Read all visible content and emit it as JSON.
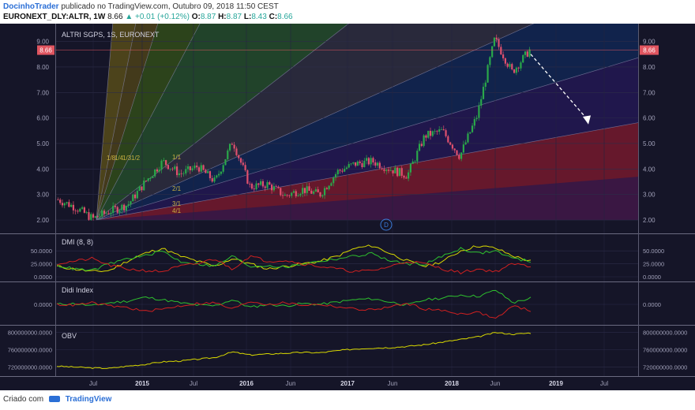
{
  "header": {
    "author": "DocinhoTrader",
    "published": "publicado no TradingView.com, Outubro 09, 2018 11:50 CEST",
    "symbol": "EURONEXT_DLY:ALTR, 1W",
    "last": "8.66",
    "change": "+0.01 (+0.12%)",
    "o_label": "O:",
    "o": "8.87",
    "h_label": "H:",
    "h": "8.87",
    "l_label": "L:",
    "l": "8.43",
    "c_label": "C:",
    "c": "8.66"
  },
  "footer": {
    "created": "Criado com",
    "brand": "TradingView"
  },
  "colors": {
    "background": "#151528",
    "up": "#2aa84a",
    "down": "#e0506e",
    "price_tag": "#e05560",
    "adx": "#d8d800",
    "plus_di": "#2ec02e",
    "minus_di": "#d02020",
    "obv": "#d8d800"
  },
  "chart_data": [
    {
      "type": "line",
      "title": "ALTRI SGPS, 1S, EURONEXT",
      "ylim": [
        1.6,
        9.45
      ],
      "y_ticks": [
        "2.00",
        "3.00",
        "4.00",
        "5.00",
        "6.00",
        "7.00",
        "8.00",
        "9.00"
      ],
      "x_ticks": [
        "Jul",
        "2015",
        "Jul",
        "2016",
        "Jun",
        "2017",
        "Jun",
        "2018",
        "Jun",
        "2019",
        "Jul"
      ],
      "last_price_label": "8.66",
      "gann_labels": [
        "1/8",
        "1/4",
        "1/3",
        "1/2",
        "1/1",
        "2/1",
        "3/1",
        "4/1"
      ],
      "event_marker": "D",
      "series": [
        {
          "x": [
            "2014-05",
            "2014-07",
            "2014-09",
            "2014-10",
            "2014-12",
            "2015-02",
            "2015-04",
            "2015-06",
            "2015-08",
            "2015-10",
            "2015-11",
            "2016-01",
            "2016-03",
            "2016-06",
            "2016-09",
            "2016-11",
            "2017-01",
            "2017-03",
            "2017-05",
            "2017-07",
            "2017-09",
            "2017-11",
            "2018-01",
            "2018-03",
            "2018-05",
            "2018-06",
            "2018-08",
            "2018-10"
          ],
          "values": [
            2.8,
            2.5,
            2.05,
            2.35,
            2.6,
            3.5,
            4.3,
            3.8,
            4.1,
            3.5,
            5.1,
            3.3,
            3.4,
            2.95,
            3.2,
            3.0,
            3.9,
            4.2,
            4.3,
            4.0,
            3.75,
            5.3,
            5.5,
            4.5,
            6.1,
            9.1,
            7.8,
            8.66
          ]
        }
      ]
    },
    {
      "type": "line",
      "title": "DMI (8, 8)",
      "y_ticks": [
        "0.0000",
        "25.0000",
        "50.0000"
      ],
      "ylim": [
        0,
        70
      ],
      "series": [
        {
          "values": [
            20,
            15,
            10,
            12,
            30,
            45,
            55,
            40,
            30,
            20,
            35,
            25,
            15,
            20,
            25,
            30,
            40,
            55,
            60,
            45,
            30,
            20,
            30,
            50,
            60,
            55,
            40,
            30
          ]
        },
        {
          "values": [
            22,
            15,
            12,
            25,
            35,
            40,
            50,
            30,
            25,
            20,
            40,
            20,
            22,
            18,
            25,
            30,
            35,
            40,
            45,
            30,
            25,
            25,
            40,
            55,
            45,
            50,
            35,
            30
          ]
        },
        {
          "values": [
            25,
            30,
            35,
            22,
            15,
            12,
            10,
            20,
            25,
            35,
            15,
            40,
            30,
            32,
            25,
            20,
            15,
            10,
            12,
            20,
            30,
            25,
            15,
            8,
            15,
            10,
            25,
            20
          ]
        }
      ]
    },
    {
      "type": "line",
      "title": "Didi Index",
      "y_ticks": [
        "0.0000"
      ],
      "ylim": [
        -1,
        1
      ],
      "series": [
        {
          "values": [
            0,
            0.05,
            -0.1,
            0.1,
            0.2,
            0.45,
            0.3,
            0.1,
            -0.05,
            -0.1,
            0.3,
            -0.2,
            0,
            -0.1,
            0.05,
            0,
            0.15,
            0.3,
            0.35,
            0.15,
            -0.05,
            0.3,
            0.4,
            0.6,
            0.5,
            0.9,
            0.1,
            0.4
          ]
        },
        {
          "values": [
            0,
            -0.05,
            0.1,
            -0.1,
            -0.2,
            -0.45,
            -0.3,
            -0.1,
            0.05,
            0.1,
            -0.3,
            0.2,
            0,
            0.1,
            -0.05,
            0,
            -0.15,
            -0.3,
            -0.35,
            -0.15,
            0.05,
            -0.3,
            -0.4,
            -0.6,
            -0.5,
            -0.9,
            -0.1,
            -0.4
          ]
        }
      ]
    },
    {
      "type": "line",
      "title": "OBV",
      "y_ticks": [
        "720000000.0000",
        "760000000.0000",
        "800000000.0000"
      ],
      "ylim": [
        710000000,
        805000000
      ],
      "series": [
        {
          "values": [
            722000000,
            720000000,
            718000000,
            717000000,
            722000000,
            726000000,
            732000000,
            734000000,
            738000000,
            742000000,
            755000000,
            748000000,
            750000000,
            752000000,
            754000000,
            753000000,
            758000000,
            762000000,
            764000000,
            765000000,
            768000000,
            772000000,
            778000000,
            784000000,
            790000000,
            800000000,
            796000000,
            799000000
          ]
        }
      ]
    }
  ]
}
